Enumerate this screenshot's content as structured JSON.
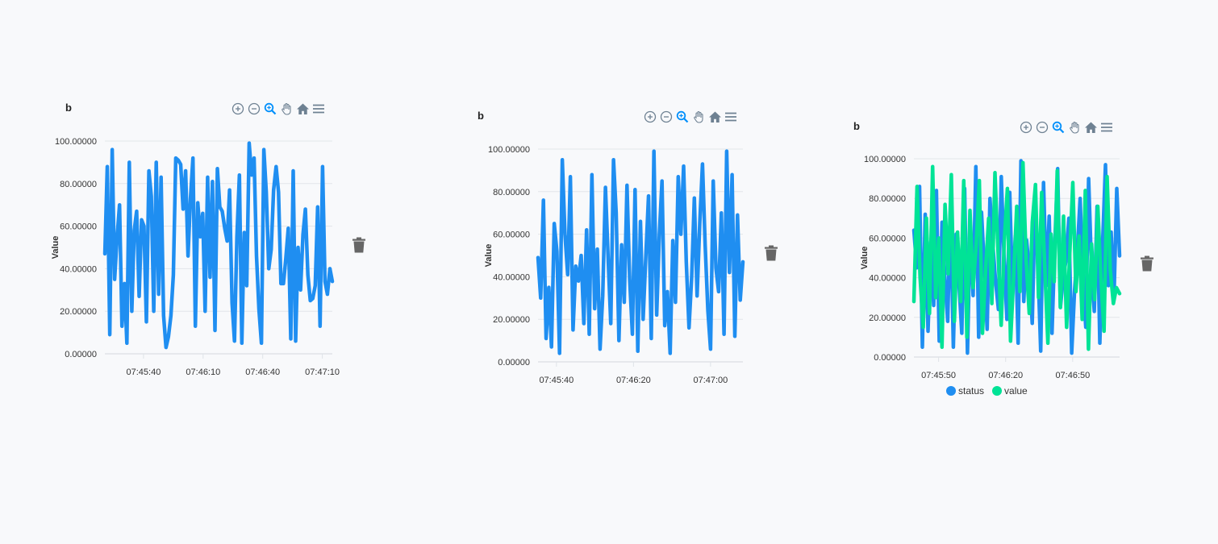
{
  "colors": {
    "status": "#1f8ef1",
    "value": "#00e396",
    "icon": "#6e8192",
    "icon_active": "#008ffb"
  },
  "toolbar_icons": [
    "zoom-in-icon",
    "zoom-out-icon",
    "zoom-selection-icon",
    "pan-hand-icon",
    "home-reset-icon",
    "menu-icon"
  ],
  "panels": [
    {
      "title": "b",
      "ylabel": "Value"
    },
    {
      "title": "b",
      "ylabel": "Value"
    },
    {
      "title": "b",
      "ylabel": "Value"
    }
  ],
  "chart_data": [
    {
      "type": "line",
      "title": "b",
      "xlabel": "",
      "ylabel": "Value",
      "ylim": [
        0,
        100
      ],
      "yticks": [
        "0.00000",
        "20.00000",
        "40.00000",
        "60.00000",
        "80.00000",
        "100.00000"
      ],
      "xticks": [
        "07:45:40",
        "07:46:10",
        "07:46:40",
        "07:47:10"
      ],
      "grid": true,
      "series": [
        {
          "name": "",
          "color": "#1f8ef1",
          "values": [
            47,
            88,
            9,
            96,
            35,
            55,
            70,
            13,
            33,
            5,
            90,
            20,
            58,
            67,
            27,
            63,
            60,
            15,
            86,
            74,
            20,
            90,
            28,
            83,
            18,
            3,
            8,
            18,
            37,
            92,
            91,
            89,
            68,
            86,
            46,
            73,
            92,
            13,
            71,
            55,
            66,
            20,
            83,
            36,
            81,
            11,
            87,
            69,
            67,
            59,
            53,
            77,
            24,
            6,
            55,
            84,
            5,
            57,
            32,
            99,
            84,
            92,
            46,
            21,
            5,
            96,
            76,
            40,
            49,
            77,
            88,
            76,
            33,
            33,
            45,
            59,
            7,
            86,
            6,
            50,
            30,
            56,
            68,
            37,
            25,
            26,
            32,
            69,
            13,
            88,
            34,
            28,
            40,
            34
          ]
        }
      ]
    },
    {
      "type": "line",
      "title": "b",
      "xlabel": "",
      "ylabel": "Value",
      "ylim": [
        0,
        100
      ],
      "yticks": [
        "0.00000",
        "20.00000",
        "40.00000",
        "60.00000",
        "80.00000",
        "100.00000"
      ],
      "xticks": [
        "07:45:40",
        "07:46:20",
        "07:47:00"
      ],
      "grid": true,
      "series": [
        {
          "name": "",
          "color": "#1f8ef1",
          "values": [
            49,
            30,
            76,
            11,
            35,
            7,
            65,
            52,
            4,
            95,
            60,
            41,
            87,
            15,
            45,
            38,
            50,
            18,
            62,
            13,
            88,
            25,
            53,
            6,
            31,
            82,
            49,
            18,
            95,
            70,
            10,
            55,
            28,
            83,
            39,
            13,
            81,
            5,
            66,
            20,
            50,
            78,
            11,
            99,
            22,
            60,
            85,
            17,
            33,
            4,
            57,
            28,
            87,
            60,
            92,
            47,
            16,
            40,
            77,
            31,
            65,
            93,
            55,
            24,
            6,
            85,
            44,
            33,
            70,
            13,
            99,
            42,
            88,
            12,
            69,
            29,
            47
          ],
          "note": ""
        }
      ]
    },
    {
      "type": "line",
      "title": "b",
      "xlabel": "",
      "ylabel": "Value",
      "ylim": [
        0,
        100
      ],
      "yticks": [
        "0.00000",
        "20.00000",
        "40.00000",
        "60.00000",
        "80.00000",
        "100.00000"
      ],
      "xticks": [
        "07:45:50",
        "07:46:20",
        "07:46:50"
      ],
      "grid": true,
      "legend": {
        "position": "bottom",
        "items": [
          "status",
          "value"
        ]
      },
      "series": [
        {
          "name": "status",
          "color": "#1f8ef1",
          "values": [
            64,
            45,
            86,
            5,
            72,
            13,
            58,
            26,
            84,
            8,
            68,
            40,
            18,
            76,
            5,
            62,
            37,
            12,
            85,
            2,
            66,
            31,
            96,
            10,
            73,
            45,
            14,
            80,
            57,
            38,
            24,
            91,
            50,
            19,
            83,
            32,
            61,
            7,
            99,
            28,
            59,
            43,
            17,
            78,
            47,
            3,
            88,
            36,
            71,
            12,
            57,
            95,
            25,
            40,
            49,
            70,
            2,
            33,
            54,
            80,
            37,
            15,
            90,
            46,
            23,
            76,
            7,
            58,
            97,
            36,
            63,
            29,
            85,
            51
          ]
        },
        {
          "name": "value",
          "color": "#00e396",
          "values": [
            28,
            86,
            40,
            15,
            70,
            22,
            96,
            30,
            60,
            5,
            77,
            42,
            92,
            18,
            63,
            28,
            89,
            10,
            74,
            35,
            57,
            89,
            12,
            44,
            70,
            27,
            93,
            53,
            16,
            58,
            85,
            8,
            40,
            76,
            33,
            98,
            49,
            22,
            68,
            87,
            30,
            83,
            45,
            7,
            62,
            38,
            94,
            25,
            71,
            15,
            52,
            88,
            33,
            61,
            19,
            84,
            4,
            57,
            29,
            76,
            40,
            13,
            91,
            44,
            27,
            35,
            32
          ]
        }
      ]
    }
  ]
}
